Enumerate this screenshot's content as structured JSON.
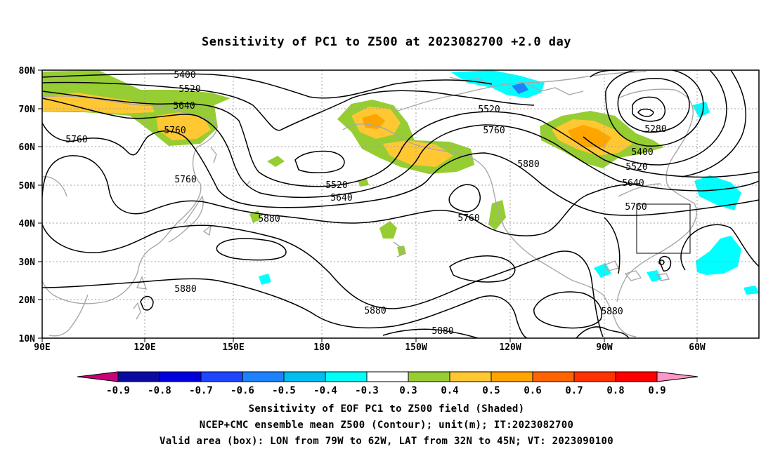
{
  "title": "Sensitivity of PC1 to Z500 at 2023082700 +2.0 day",
  "map": {
    "lon_labels": [
      "90E",
      "120E",
      "150E",
      "180",
      "150W",
      "120W",
      "90W",
      "60W"
    ],
    "lat_labels": [
      "10N",
      "20N",
      "30N",
      "40N",
      "50N",
      "60N",
      "70N",
      "80N"
    ],
    "contour_labels": [
      "5400",
      "5520",
      "5640",
      "5760",
      "5760",
      "5760",
      "5880",
      "5880",
      "5520",
      "5640",
      "5760",
      "5880",
      "5880",
      "5520",
      "5760",
      "5880",
      "5640",
      "5760",
      "5400",
      "5520",
      "5280",
      "5880"
    ],
    "valid_box": {
      "lon_min": -79,
      "lon_max": -62,
      "lat_min": 32,
      "lat_max": 45
    }
  },
  "colorbar": {
    "labels": [
      "-0.9",
      "-0.8",
      "-0.7",
      "-0.6",
      "-0.5",
      "-0.4",
      "-0.3",
      "0.3",
      "0.4",
      "0.5",
      "0.6",
      "0.7",
      "0.8",
      "0.9"
    ],
    "colors": [
      "#c8007a",
      "#0a0aa0",
      "#0000dc",
      "#1e46ff",
      "#1e82ff",
      "#00bef0",
      "#00fff8",
      "#ffffff",
      "#96cd32",
      "#ffc832",
      "#ffa500",
      "#ff6400",
      "#ff3200",
      "#ff0000",
      "#ff96c8"
    ]
  },
  "captions": {
    "line1": "Sensitivity of EOF PC1 to Z500 field (Shaded)",
    "line2": "NCEP+CMC ensemble mean Z500 (Contour); unit(m); IT:2023082700",
    "line3": "Valid area (box): LON from 79W to 62W, LAT from 32N to 45N; VT: 2023090100"
  }
}
